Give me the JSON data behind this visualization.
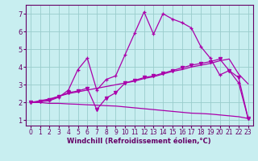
{
  "xlabel": "Windchill (Refroidissement éolien,°C)",
  "bg_color": "#c8eef0",
  "line_color": "#aa00aa",
  "grid_color": "#99cccc",
  "text_color": "#660066",
  "axis_color": "#660066",
  "xlim": [
    -0.5,
    23.5
  ],
  "ylim": [
    0.7,
    7.5
  ],
  "xticks": [
    0,
    1,
    2,
    3,
    4,
    5,
    6,
    7,
    8,
    9,
    10,
    11,
    12,
    13,
    14,
    15,
    16,
    17,
    18,
    19,
    20,
    21,
    22,
    23
  ],
  "yticks": [
    1,
    2,
    3,
    4,
    5,
    6,
    7
  ],
  "line_main_x": [
    0,
    1,
    2,
    3,
    4,
    5,
    6,
    7,
    8,
    9,
    10,
    11,
    12,
    13,
    14,
    15,
    16,
    17,
    18,
    19,
    20,
    21,
    22,
    23
  ],
  "line_main_y": [
    2.0,
    2.05,
    2.1,
    2.3,
    2.7,
    3.85,
    4.5,
    2.7,
    3.3,
    3.5,
    4.7,
    5.9,
    7.1,
    5.85,
    7.0,
    6.7,
    6.5,
    6.2,
    5.15,
    4.5,
    3.55,
    3.8,
    3.1,
    1.1
  ],
  "line_trend_up_x": [
    0,
    1,
    2,
    3,
    4,
    5,
    6,
    7,
    8,
    9,
    10,
    11,
    12,
    13,
    14,
    15,
    16,
    17,
    18,
    19,
    20,
    21,
    22,
    23
  ],
  "line_trend_up_y": [
    2.0,
    2.1,
    2.2,
    2.35,
    2.5,
    2.6,
    2.7,
    2.8,
    2.9,
    3.0,
    3.1,
    3.2,
    3.35,
    3.45,
    3.6,
    3.75,
    3.85,
    4.0,
    4.1,
    4.2,
    4.35,
    4.45,
    3.6,
    3.05
  ],
  "line_trend_down_x": [
    0,
    1,
    2,
    3,
    4,
    5,
    6,
    7,
    8,
    9,
    10,
    11,
    12,
    13,
    14,
    15,
    16,
    17,
    18,
    19,
    20,
    21,
    22,
    23
  ],
  "line_trend_down_y": [
    2.0,
    2.0,
    1.95,
    1.95,
    1.92,
    1.9,
    1.87,
    1.85,
    1.82,
    1.8,
    1.75,
    1.7,
    1.65,
    1.6,
    1.55,
    1.5,
    1.45,
    1.4,
    1.38,
    1.35,
    1.3,
    1.25,
    1.2,
    1.1
  ],
  "line_v_x": [
    0,
    1,
    2,
    3,
    4,
    5,
    6,
    7,
    8,
    9,
    10,
    11,
    12,
    13,
    14,
    15,
    16,
    17,
    18,
    19,
    20,
    21,
    22,
    23
  ],
  "line_v_y": [
    2.0,
    2.05,
    2.15,
    2.35,
    2.55,
    2.65,
    2.8,
    1.6,
    2.25,
    2.55,
    3.1,
    3.25,
    3.4,
    3.5,
    3.65,
    3.8,
    3.95,
    4.1,
    4.2,
    4.3,
    4.45,
    3.8,
    3.4,
    1.1
  ]
}
